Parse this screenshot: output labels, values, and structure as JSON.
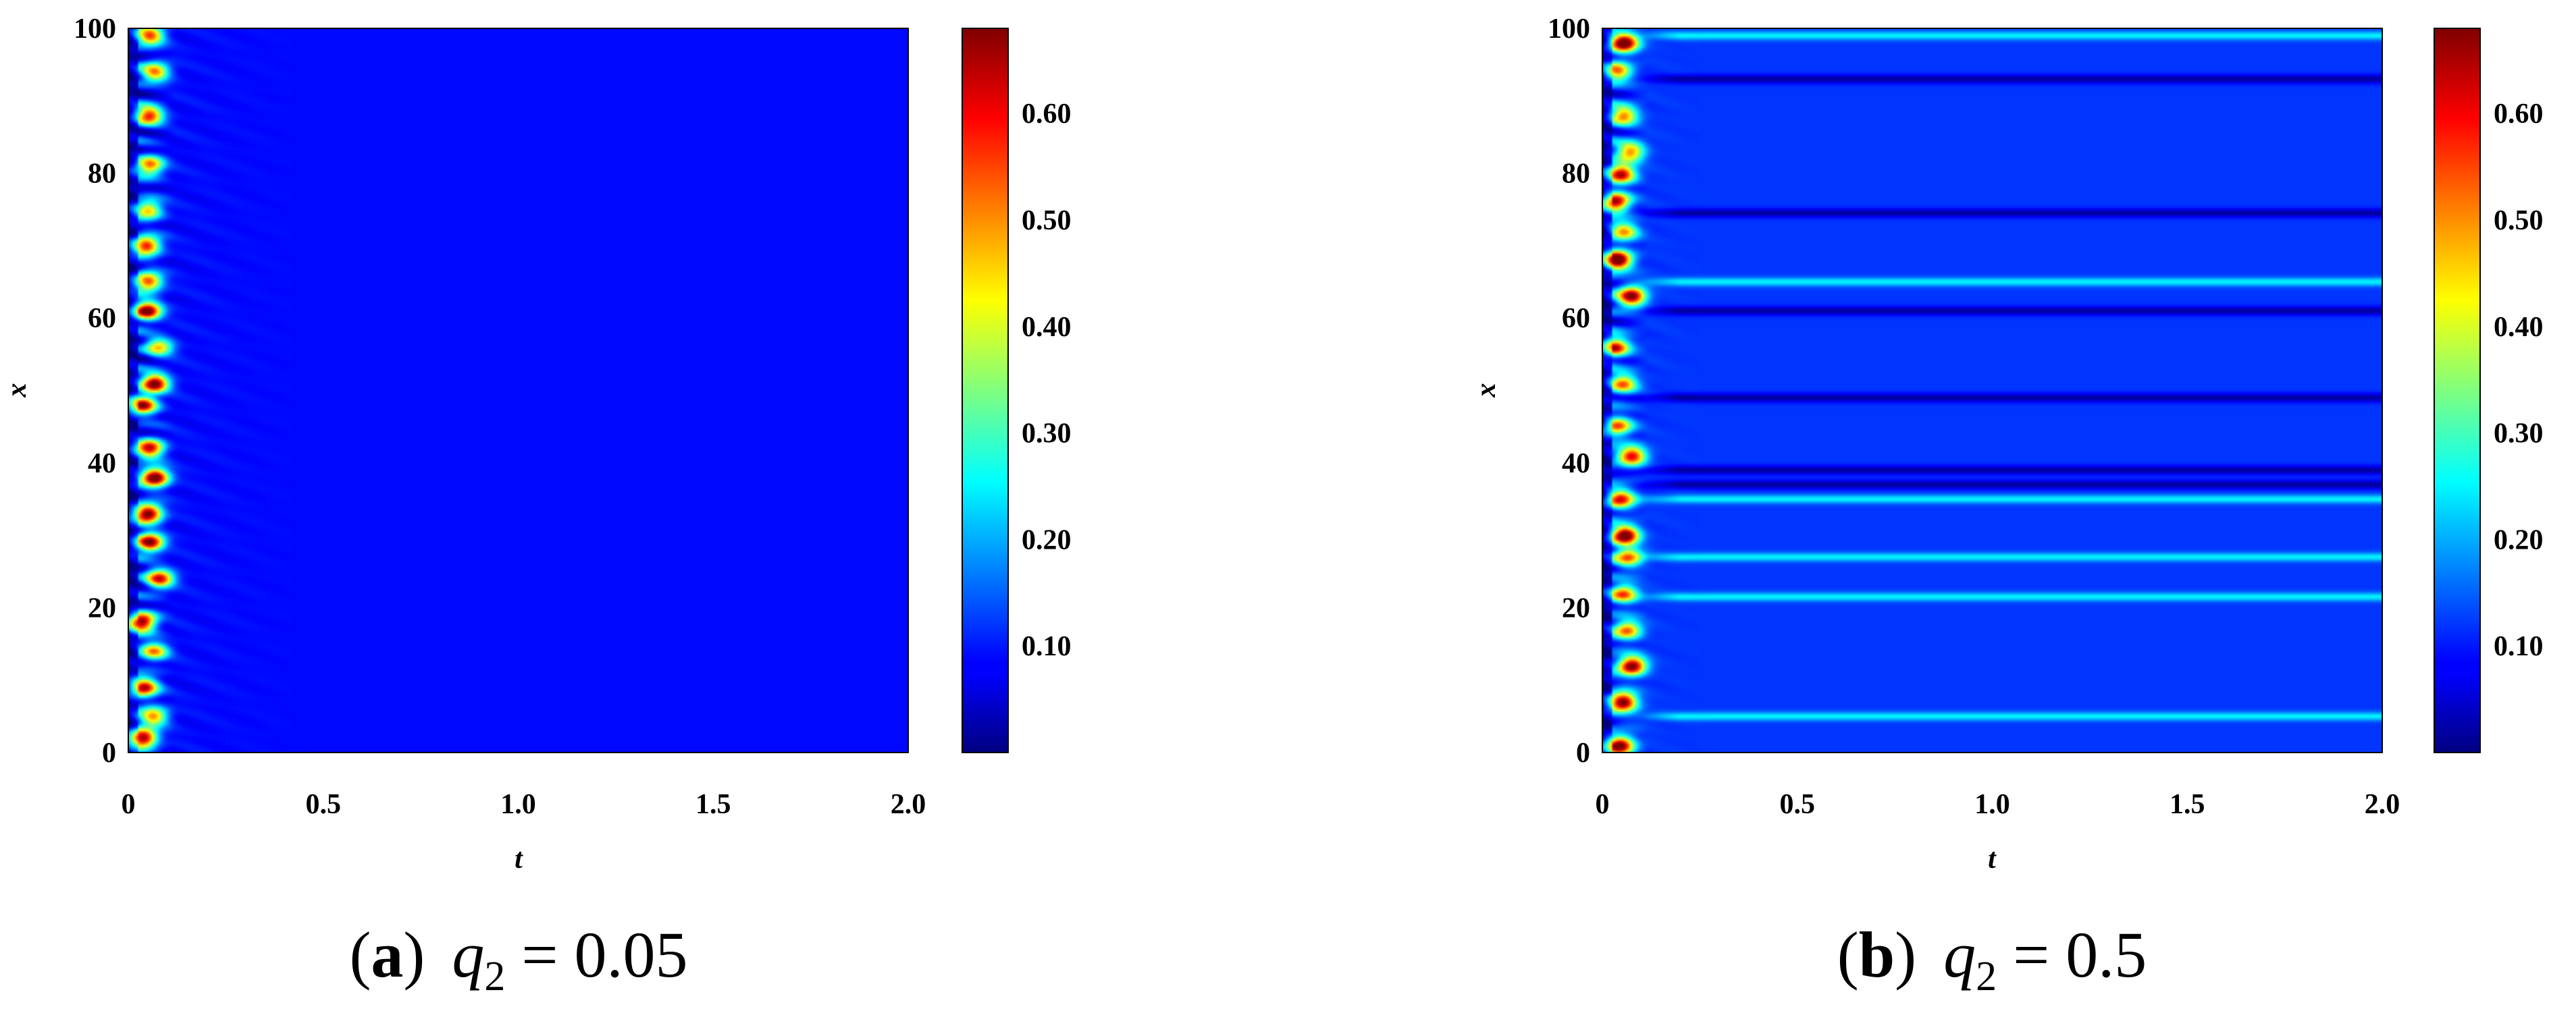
{
  "chart_data": [
    {
      "type": "heatmap",
      "panel": "a",
      "caption": {
        "open": "(",
        "letter": "a",
        "close": ")",
        "var": "q",
        "sub": "2",
        "eq": " = 0.05"
      },
      "title": "",
      "xlabel": "t",
      "ylabel": "x",
      "xlim": [
        0,
        2.0
      ],
      "ylim": [
        0,
        100
      ],
      "xticks": [
        "0",
        "0.5",
        "1.0",
        "1.5",
        "2.0"
      ],
      "xtick_values": [
        0,
        0.5,
        1.0,
        1.5,
        2.0
      ],
      "yticks": [
        "0",
        "20",
        "40",
        "60",
        "80",
        "100"
      ],
      "ytick_values": [
        0,
        20,
        40,
        60,
        80,
        100
      ],
      "colorbar": {
        "colormap": "jet",
        "range": [
          0.0,
          0.68
        ],
        "ticks": [
          "0.10",
          "0.20",
          "0.30",
          "0.40",
          "0.50",
          "0.60"
        ],
        "tick_values": [
          0.1,
          0.2,
          0.3,
          0.4,
          0.5,
          0.6
        ]
      },
      "background_value": 0.09,
      "transient_end_t": 0.42,
      "transient_peaks_x": [
        2,
        5,
        9,
        14,
        18,
        24,
        29,
        33,
        38,
        42,
        48,
        51,
        56,
        61,
        65,
        70,
        75,
        81,
        88,
        94,
        99
      ],
      "stationary_bands": []
    },
    {
      "type": "heatmap",
      "panel": "b",
      "caption": {
        "open": "(",
        "letter": "b",
        "close": ")",
        "var": "q",
        "sub": "2",
        "eq": " = 0.5"
      },
      "title": "",
      "xlabel": "t",
      "ylabel": "x",
      "xlim": [
        0,
        2.0
      ],
      "ylim": [
        0,
        100
      ],
      "xticks": [
        "0",
        "0.5",
        "1.0",
        "1.5",
        "2.0"
      ],
      "xtick_values": [
        0,
        0.5,
        1.0,
        1.5,
        2.0
      ],
      "yticks": [
        "0",
        "20",
        "40",
        "60",
        "80",
        "100"
      ],
      "ytick_values": [
        0,
        20,
        40,
        60,
        80,
        100
      ],
      "colorbar": {
        "colormap": "jet",
        "range": [
          0.0,
          0.68
        ],
        "ticks": [
          "0.10",
          "0.20",
          "0.30",
          "0.40",
          "0.50",
          "0.60"
        ],
        "tick_values": [
          0.1,
          0.2,
          0.3,
          0.4,
          0.5,
          0.6
        ]
      },
      "background_value": 0.12,
      "transient_end_t": 0.25,
      "transient_peaks_x": [
        1,
        7,
        12,
        17,
        22,
        27,
        30,
        35,
        41,
        45,
        51,
        56,
        63,
        68,
        72,
        76,
        80,
        83,
        88,
        94,
        98
      ],
      "stationary_bands": [
        {
          "x": 99,
          "value": 0.25
        },
        {
          "x": 93,
          "value": 0.02
        },
        {
          "x": 74.5,
          "value": 0.02
        },
        {
          "x": 65,
          "value": 0.25
        },
        {
          "x": 61,
          "value": 0.02
        },
        {
          "x": 49,
          "value": 0.02
        },
        {
          "x": 39,
          "value": 0.02
        },
        {
          "x": 37,
          "value": 0.02
        },
        {
          "x": 35,
          "value": 0.25
        },
        {
          "x": 27,
          "value": 0.25
        },
        {
          "x": 21.5,
          "value": 0.25
        },
        {
          "x": 5,
          "value": 0.25
        }
      ]
    }
  ]
}
